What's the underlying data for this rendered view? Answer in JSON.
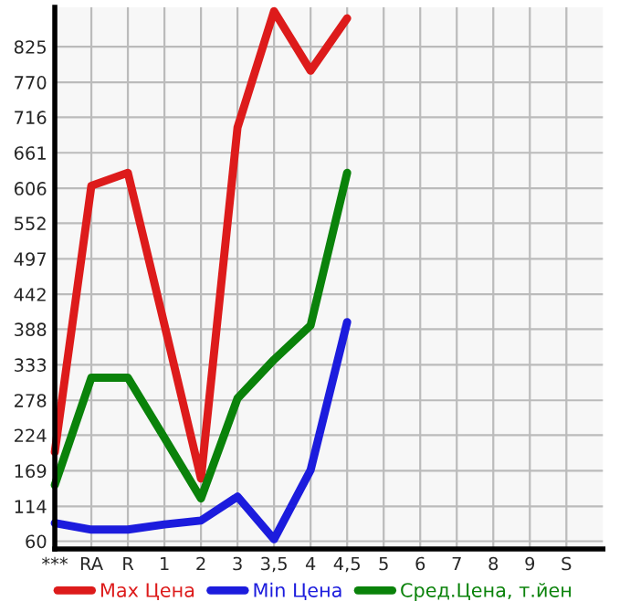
{
  "chart_data": {
    "type": "line",
    "categories": [
      "***",
      "RA",
      "R",
      "1",
      "2",
      "3",
      "3,5",
      "4",
      "4,5",
      "5",
      "6",
      "7",
      "8",
      "9",
      "S"
    ],
    "series": [
      {
        "name": "Max Цена",
        "color": "#dd1b1b",
        "values": [
          198,
          610,
          630,
          395,
          157,
          700,
          880,
          788,
          869,
          null,
          null,
          null,
          null,
          null,
          null
        ]
      },
      {
        "name": "Min Цена",
        "color": "#1c1cdd",
        "values": [
          88,
          78,
          78,
          86,
          92,
          129,
          63,
          170,
          399,
          null,
          null,
          null,
          null,
          null,
          null
        ]
      },
      {
        "name": "Сред.Цена, т.йен",
        "color": "#0a820a",
        "values": [
          147,
          313,
          313,
          220,
          126,
          281,
          341,
          394,
          630,
          null,
          null,
          null,
          null,
          null,
          null
        ]
      }
    ],
    "ylim": [
      48,
      886
    ],
    "yticks": [
      60,
      114,
      169,
      224,
      278,
      333,
      388,
      442,
      497,
      552,
      606,
      661,
      716,
      770,
      825
    ],
    "grid": true,
    "legend": "bottom",
    "marker": "none",
    "line_style": "solid"
  }
}
